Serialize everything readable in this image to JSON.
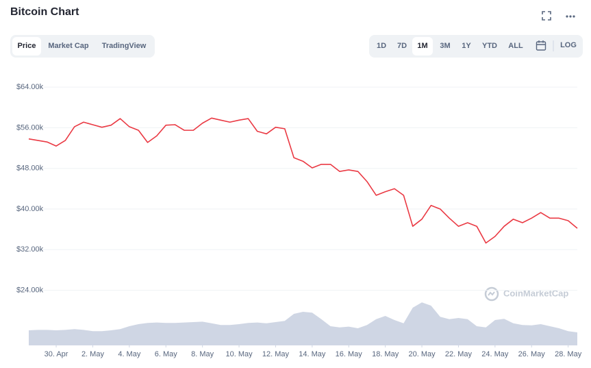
{
  "chart_data": {
    "type": "line",
    "title": "Bitcoin Chart",
    "controls": {
      "tabs": [
        {
          "label": "Price",
          "active": true
        },
        {
          "label": "Market Cap",
          "active": false
        },
        {
          "label": "TradingView",
          "active": false
        }
      ],
      "ranges": [
        {
          "label": "1D",
          "active": false
        },
        {
          "label": "7D",
          "active": false
        },
        {
          "label": "1M",
          "active": true
        },
        {
          "label": "3M",
          "active": false
        },
        {
          "label": "1Y",
          "active": false
        },
        {
          "label": "YTD",
          "active": false
        },
        {
          "label": "ALL",
          "active": false
        }
      ],
      "log": "LOG"
    },
    "watermark": "CoinMarketCap",
    "categories": [
      null,
      null,
      null,
      "30. Apr",
      null,
      null,
      null,
      "2. May",
      null,
      null,
      null,
      "4. May",
      null,
      null,
      null,
      "6. May",
      null,
      null,
      null,
      "8. May",
      null,
      null,
      null,
      "10. May",
      null,
      null,
      null,
      "12. May",
      null,
      null,
      null,
      "14. May",
      null,
      null,
      null,
      "16. May",
      null,
      null,
      null,
      "18. May",
      null,
      null,
      null,
      "20. May",
      null,
      null,
      null,
      "22. May",
      null,
      null,
      null,
      "24. May",
      null,
      null,
      null,
      "26. May",
      null,
      null,
      null,
      "28. May",
      null
    ],
    "series": [
      {
        "color": "#ea3943",
        "values": [
          53800,
          53500,
          53200,
          52400,
          53500,
          56200,
          57100,
          56600,
          56100,
          56500,
          57800,
          56200,
          55500,
          53100,
          54400,
          56500,
          56600,
          55500,
          55500,
          56900,
          57900,
          57500,
          57100,
          57500,
          57800,
          55300,
          54800,
          56100,
          55800,
          50100,
          49400,
          48100,
          48800,
          48800,
          47400,
          47700,
          47400,
          45400,
          42700,
          43400,
          44000,
          42700,
          36600,
          38000,
          40700,
          40000,
          38200,
          36600,
          37300,
          36600,
          33300,
          34600,
          36600,
          38000,
          37300,
          38200,
          39300,
          38200,
          38200,
          37700,
          36200
        ]
      },
      {
        "color": "#cfd6e4",
        "axis": "y2",
        "values": [
          35,
          36,
          36,
          35,
          36,
          38,
          36,
          33,
          33,
          35,
          38,
          45,
          50,
          53,
          54,
          53,
          53,
          54,
          55,
          56,
          52,
          48,
          48,
          50,
          53,
          54,
          52,
          55,
          58,
          75,
          80,
          78,
          62,
          45,
          42,
          44,
          40,
          48,
          62,
          70,
          60,
          52,
          90,
          103,
          95,
          68,
          62,
          65,
          62,
          45,
          42,
          60,
          63,
          52,
          48,
          47,
          50,
          45,
          40,
          33,
          30
        ]
      }
    ],
    "ylim": [
      22000,
      66000
    ],
    "yticks": [
      {
        "value": 64000,
        "label": "$64.00k"
      },
      {
        "value": 56000,
        "label": "$56.00k"
      },
      {
        "value": 48000,
        "label": "$48.00k"
      },
      {
        "value": 40000,
        "label": "$40.00k"
      },
      {
        "value": 32000,
        "label": "$32.00k"
      },
      {
        "value": 24000,
        "label": "$24.00k"
      }
    ],
    "y2lim": [
      0,
      150
    ],
    "grid": true
  }
}
